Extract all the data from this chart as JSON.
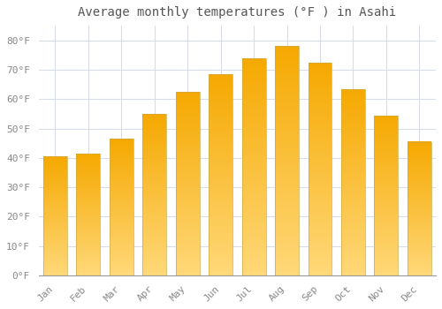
{
  "title": "Average monthly temperatures (°F ) in Asahi",
  "months": [
    "Jan",
    "Feb",
    "Mar",
    "Apr",
    "May",
    "Jun",
    "Jul",
    "Aug",
    "Sep",
    "Oct",
    "Nov",
    "Dec"
  ],
  "values": [
    40.5,
    41.5,
    46.5,
    55.0,
    62.5,
    68.5,
    74.0,
    78.0,
    72.5,
    63.5,
    54.5,
    45.5
  ],
  "bar_color_top": "#F5A800",
  "bar_color_bottom": "#FFD878",
  "background_color": "#ffffff",
  "plot_bg_color": "#ffffff",
  "grid_color": "#d8dce8",
  "yticks": [
    0,
    10,
    20,
    30,
    40,
    50,
    60,
    70,
    80
  ],
  "ylim": [
    0,
    85
  ],
  "title_fontsize": 10,
  "tick_fontsize": 8,
  "font_color": "#888888"
}
